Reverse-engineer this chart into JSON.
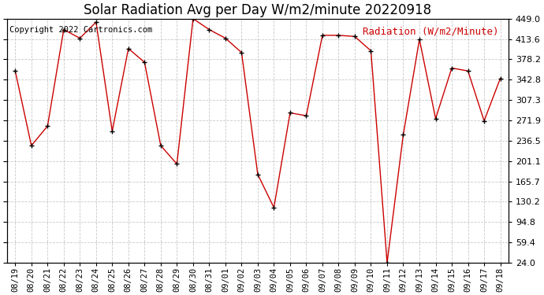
{
  "title": "Solar Radiation Avg per Day W/m2/minute 20220918",
  "copyright": "Copyright 2022 Cartronics.com",
  "ylabel_text": "Radiation (W/m2/Minute)",
  "dates": [
    "08/19",
    "08/20",
    "08/21",
    "08/22",
    "08/23",
    "08/24",
    "08/25",
    "08/26",
    "08/27",
    "08/28",
    "08/29",
    "08/30",
    "08/31",
    "09/01",
    "09/02",
    "09/03",
    "09/04",
    "09/05",
    "09/06",
    "09/07",
    "09/08",
    "09/09",
    "09/10",
    "09/11",
    "09/12",
    "09/13",
    "09/14",
    "09/15",
    "09/16",
    "09/17",
    "09/18"
  ],
  "values": [
    358.0,
    228.0,
    262.0,
    430.0,
    415.0,
    443.0,
    253.0,
    397.0,
    373.0,
    228.0,
    196.0,
    449.0,
    430.0,
    415.0,
    390.0,
    178.0,
    120.0,
    285.0,
    280.0,
    420.0,
    420.0,
    418.0,
    393.0,
    24.0,
    247.0,
    413.0,
    275.0,
    363.0,
    358.0,
    271.0,
    345.0
  ],
  "yticks": [
    24.0,
    59.4,
    94.8,
    130.2,
    165.7,
    201.1,
    236.5,
    271.9,
    307.3,
    342.8,
    378.2,
    413.6,
    449.0
  ],
  "ymin": 24.0,
  "ymax": 449.0,
  "line_color": "#cc0000",
  "marker_color": "#000000",
  "bg_color": "#ffffff",
  "grid_color": "#bbbbbb",
  "title_fontsize": 12,
  "copyright_fontsize": 7.5,
  "ylabel_fontsize": 9,
  "tick_fontsize": 7.5,
  "ytick_fontsize": 8
}
